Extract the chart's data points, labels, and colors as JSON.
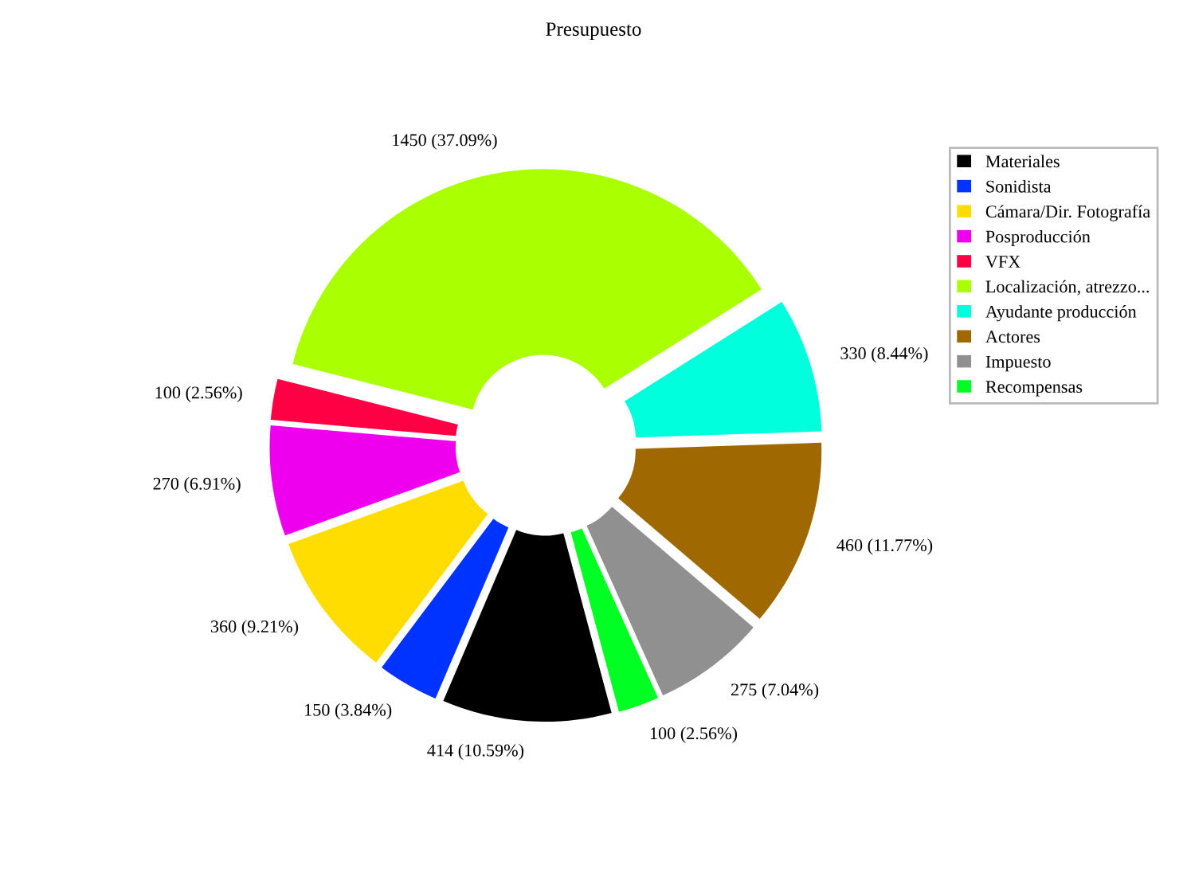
{
  "chart_data": {
    "type": "donut",
    "title": "Presupuesto",
    "categories": [
      "Materiales",
      "Sonidista",
      "Cámara/Dir. Fotografía",
      "Posproducción",
      "VFX",
      "Localización, atrezzo...",
      "Ayudante producción",
      "Actores",
      "Impuesto",
      "Recompensas"
    ],
    "values": [
      414,
      150,
      360,
      270,
      100,
      1450,
      330,
      460,
      275,
      100
    ],
    "colors": [
      "#000000",
      "#0033ff",
      "#ffdd00",
      "#ee00ee",
      "#ff0044",
      "#aaff00",
      "#00ffdd",
      "#a06800",
      "#909090",
      "#00ff22"
    ],
    "value_labels": [
      "414 (10.59%)",
      "150 (3.84%)",
      "360 (9.21%)",
      "270 (6.91%)",
      "100 (2.56%)",
      "1450 (37.09%)",
      "330 (8.44%)",
      "460 (11.77%)",
      "275 (7.04%)",
      "100 (2.56%)"
    ],
    "legend": "right"
  }
}
